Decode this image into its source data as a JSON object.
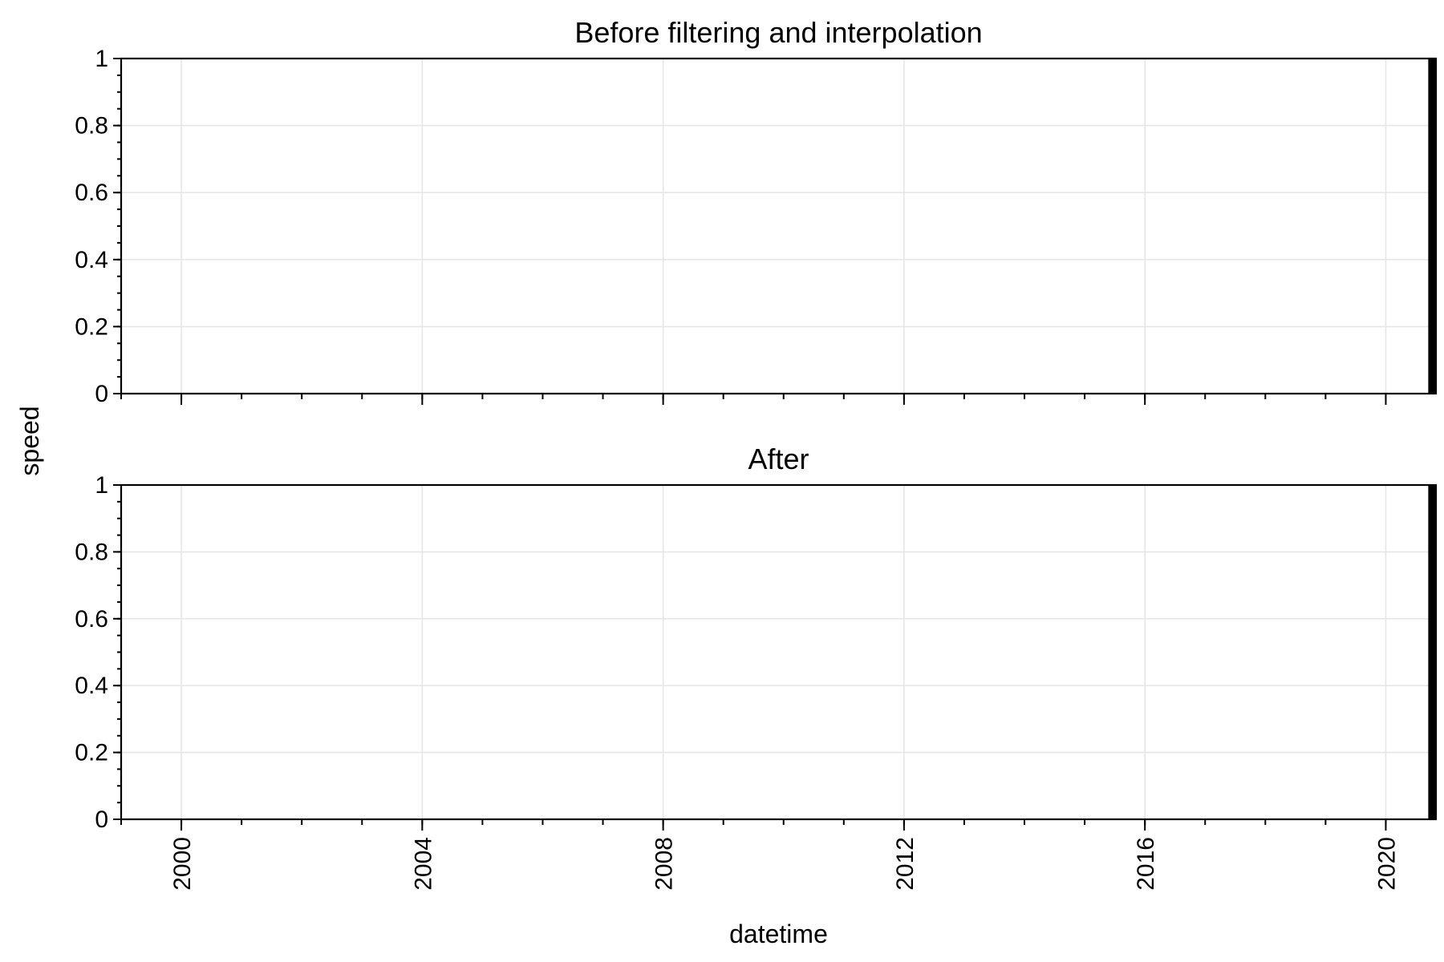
{
  "chart_data": [
    {
      "type": "bar",
      "title": "Before filtering and interpolation",
      "xlabel": "",
      "ylabel": "speed",
      "xlim": [
        "1999-01-01",
        "2020-11-01"
      ],
      "ylim": [
        0,
        1
      ],
      "x_ticks": [
        "2000",
        "2004",
        "2008",
        "2012",
        "2016",
        "2020"
      ],
      "x_tick_labels_visible": false,
      "y_ticks": [
        0,
        0.2,
        0.4,
        0.6,
        0.8,
        1
      ],
      "y_tick_labels": [
        "0",
        "0.2",
        "0.4",
        "0.6",
        "0.8",
        "1"
      ],
      "grid": true,
      "legend": "none",
      "data_span": {
        "start": "2020-09-15",
        "end": "2020-11-01",
        "min": 0,
        "max": 1,
        "description_color": "#000000"
      }
    },
    {
      "type": "bar",
      "title": "After",
      "xlabel": "datetime",
      "ylabel": "",
      "xlim": [
        "1999-01-01",
        "2020-11-01"
      ],
      "ylim": [
        0,
        1
      ],
      "x_ticks": [
        "2000",
        "2004",
        "2008",
        "2012",
        "2016",
        "2020"
      ],
      "x_tick_labels": [
        "2000",
        "2004",
        "2008",
        "2012",
        "2016",
        "2020"
      ],
      "x_tick_labels_visible": true,
      "y_ticks": [
        0,
        0.2,
        0.4,
        0.6,
        0.8,
        1
      ],
      "y_tick_labels": [
        "0",
        "0.2",
        "0.4",
        "0.6",
        "0.8",
        "1"
      ],
      "grid": true,
      "legend": "none",
      "data_span": {
        "start": "2020-09-15",
        "end": "2020-11-01",
        "min": 0,
        "max": 1,
        "description_color": "#000000"
      }
    }
  ],
  "shared_ylabel": "speed"
}
